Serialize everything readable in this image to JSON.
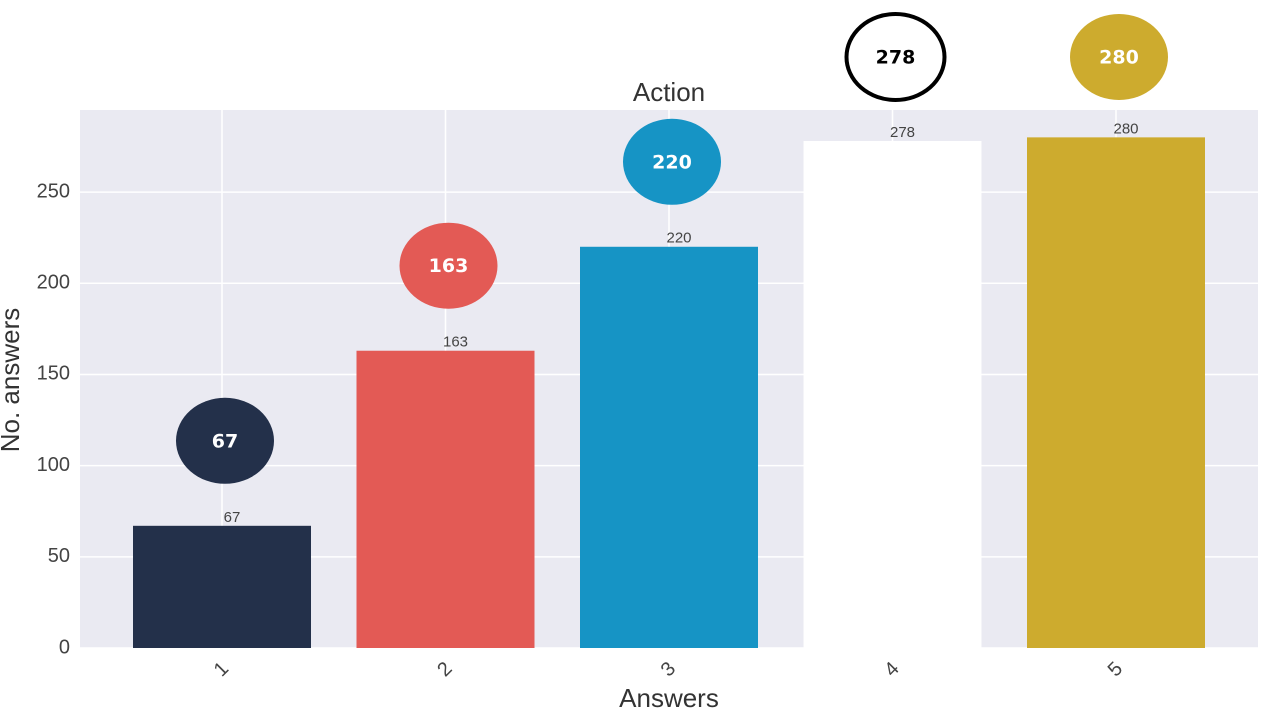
{
  "chart_data": {
    "type": "bar",
    "title": "Action",
    "x_label": "Answers",
    "y_label": "No. answers",
    "categories": [
      "1",
      "2",
      "3",
      "4",
      "5"
    ],
    "values": [
      67,
      163,
      220,
      278,
      280
    ],
    "colors": [
      "#23304a",
      "#e35a55",
      "#1694c5",
      "#ffffff",
      "#cdab2e"
    ],
    "ylim": [
      0,
      295
    ],
    "yticks": [
      0,
      50,
      100,
      150,
      200,
      250
    ],
    "grid": true
  }
}
